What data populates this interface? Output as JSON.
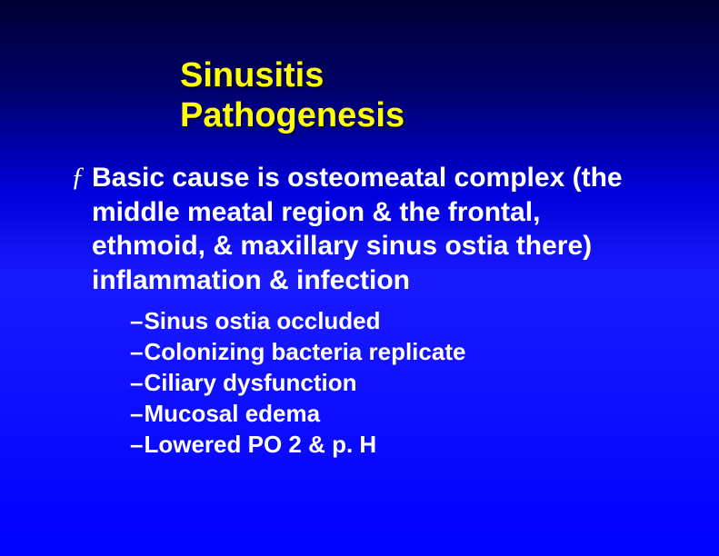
{
  "title": {
    "line1": "Sinusitis",
    "line2": "Pathogenesis",
    "color": "#ffff00",
    "fontsize": 38
  },
  "mainBullet": {
    "marker": "ƒ",
    "text": "Basic cause is osteomeatal complex (the middle meatal region & the frontal, ethmoid, & maxillary sinus ostia there) inflammation & infection"
  },
  "subBullets": {
    "marker": "–",
    "items": [
      "Sinus ostia occluded",
      "Colonizing bacteria replicate",
      "Ciliary dysfunction",
      "Mucosal edema",
      "Lowered PO 2 & p. H"
    ]
  },
  "background": {
    "gradient_top": "#000033",
    "gradient_bottom": "#0000ff"
  },
  "text_color": "#ffffff"
}
